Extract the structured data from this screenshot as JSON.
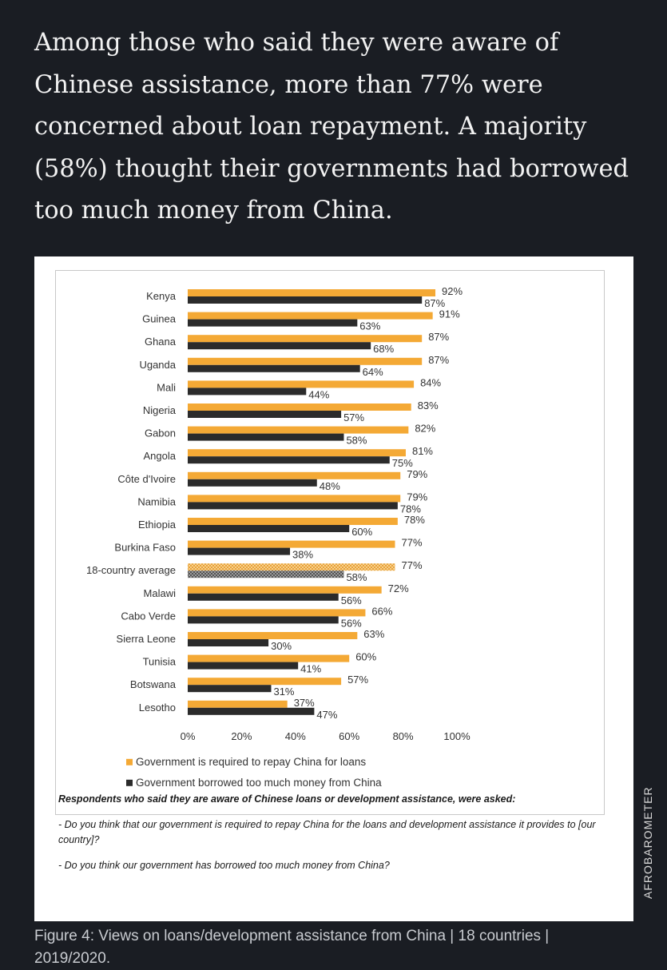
{
  "intro_text": "Among those who said they were aware of Chinese assistance, more than 77% were concerned about loan repayment. A majority (58%) thought their governments had borrowed too much money from China.",
  "chart_data": {
    "type": "bar",
    "orientation": "horizontal",
    "categories": [
      "Kenya",
      "Guinea",
      "Ghana",
      "Uganda",
      "Mali",
      "Nigeria",
      "Gabon",
      "Angola",
      "Côte d'Ivoire",
      "Namibia",
      "Ethiopia",
      "Burkina Faso",
      "18-country average",
      "Malawi",
      "Cabo Verde",
      "Sierra Leone",
      "Tunisia",
      "Botswana",
      "Lesotho"
    ],
    "series": [
      {
        "name": "Government is required to repay China for loans",
        "color": "#f4a935",
        "values": [
          92,
          91,
          87,
          87,
          84,
          83,
          82,
          81,
          79,
          79,
          78,
          77,
          77,
          72,
          66,
          63,
          60,
          57,
          37
        ]
      },
      {
        "name": "Government borrowed too much money from China",
        "color": "#2b2b2b",
        "values": [
          87,
          63,
          68,
          64,
          44,
          57,
          58,
          75,
          48,
          78,
          60,
          38,
          58,
          56,
          56,
          30,
          41,
          31,
          47
        ]
      }
    ],
    "highlight_category": "18-country average",
    "xlim": [
      0,
      100
    ],
    "xticks": [
      "0%",
      "20%",
      "40%",
      "60%",
      "80%",
      "100%"
    ],
    "value_suffix": "%",
    "legend_position": "bottom",
    "grid": false
  },
  "notes": {
    "heading": "Respondents who said they are aware of Chinese loans or development assistance, were asked:",
    "q1": "- Do you think that our government is required to repay China for the loans and development assistance it provides to [our country]?",
    "q2": "- Do you think our government has borrowed too much money from China?"
  },
  "caption": "Figure 4: Views on loans/development assistance from China | 18 countries | 2019/2020.",
  "side_label": "AFROBAROMETER"
}
